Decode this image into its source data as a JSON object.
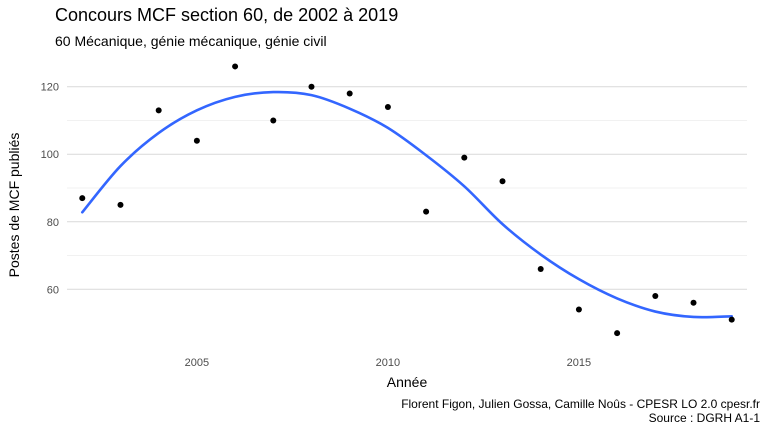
{
  "chart_data": {
    "type": "scatter",
    "title": "Concours MCF section 60, de 2002 à 2019",
    "subtitle": "60 Mécanique, génie mécanique, génie civil",
    "xlabel": "Année",
    "ylabel": "Postes de MCF publiés",
    "xlim": [
      2001.6,
      2019.4
    ],
    "ylim": [
      43.5,
      128.5
    ],
    "x_ticks": [
      2005,
      2010,
      2015
    ],
    "y_ticks": [
      60,
      80,
      100,
      120
    ],
    "grid": true,
    "legend": "none",
    "point_color": "#000000",
    "smooth_color": "#3366FF",
    "series": [
      {
        "x": [
          2002,
          2003,
          2004,
          2005,
          2006,
          2007,
          2008,
          2009,
          2010,
          2011,
          2012,
          2013,
          2014,
          2015,
          2016,
          2017,
          2018,
          2019
        ],
        "y": [
          87,
          85,
          113,
          104,
          126,
          110,
          120,
          118,
          114,
          83,
          99,
          92,
          66,
          54,
          47,
          58,
          56,
          51
        ]
      }
    ],
    "smooth": {
      "x": [
        2002,
        2003,
        2004,
        2005,
        2006,
        2007,
        2008,
        2009,
        2010,
        2011,
        2012,
        2013,
        2014,
        2015,
        2016,
        2017,
        2018,
        2019
      ],
      "y": [
        82.8,
        96.5,
        106.3,
        113.0,
        117.0,
        118.4,
        117.5,
        113.5,
        107.8,
        99.7,
        90.5,
        79.3,
        70.3,
        63.0,
        57.3,
        53.4,
        51.8,
        52.0
      ]
    },
    "caption": [
      "Florent Figon, Julien Gossa, Camille Noûs - CPESR LO 2.0 cpesr.fr",
      "Source : DGRH A1-1"
    ]
  }
}
